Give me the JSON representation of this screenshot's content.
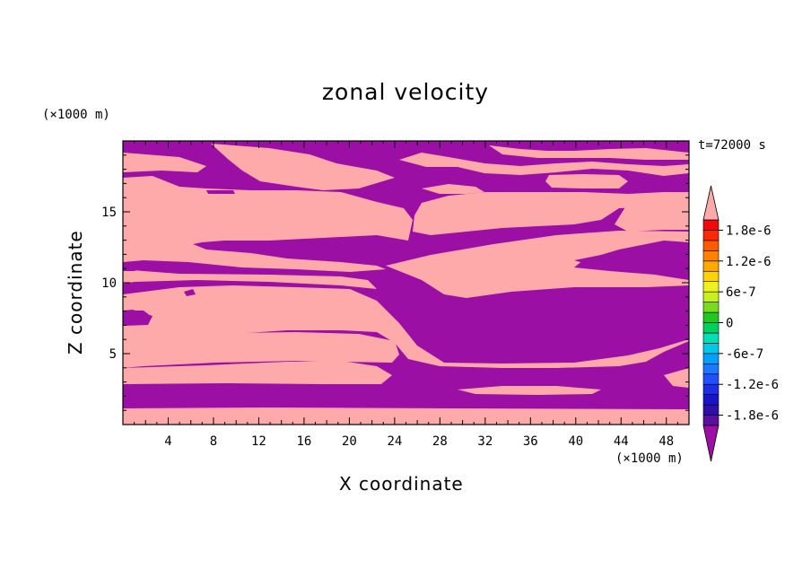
{
  "chart_data": {
    "type": "heatmap",
    "title": "zonal velocity",
    "time_label": "t=72000 s",
    "xlabel": "X coordinate",
    "ylabel": "Z coordinate",
    "x_unit": "(×1000 m)",
    "y_unit": "(×1000 m)",
    "xlim": [
      0,
      50
    ],
    "ylim": [
      0,
      20
    ],
    "x_ticks": [
      4,
      8,
      12,
      16,
      20,
      24,
      28,
      32,
      36,
      40,
      44,
      48
    ],
    "y_ticks": [
      5,
      10,
      15
    ],
    "colorbar": {
      "levels": [
        -2e-06,
        -1.8e-06,
        -1.6e-06,
        -1.4e-06,
        -1.2e-06,
        -1e-06,
        -8e-07,
        -6e-07,
        -4e-07,
        -2e-07,
        0,
        2e-07,
        4e-07,
        6e-07,
        8e-07,
        1e-06,
        1.2e-06,
        1.4e-06,
        1.6e-06,
        1.8e-06,
        2e-06
      ],
      "tick_labels": [
        "1.8e-6",
        "1.2e-6",
        "6e-7",
        "0",
        "-6e-7",
        "-1.2e-6",
        "-1.8e-6"
      ],
      "colors": [
        "#5a0fa0",
        "#2d0fa8",
        "#1a14c8",
        "#1e2ce8",
        "#2050ff",
        "#1e78ff",
        "#00a0ff",
        "#00c8e6",
        "#00e0b4",
        "#00d060",
        "#22c81e",
        "#78dc1e",
        "#c8f01e",
        "#f0f01e",
        "#ffd200",
        "#ffaa00",
        "#ff8200",
        "#ff5a00",
        "#ff2800",
        "#f00a0a"
      ],
      "under_color": "#9b0fa5",
      "over_color": "#ffaaaa"
    },
    "regions": {
      "background_value": "negative (below -2e-6)",
      "background_color": "#9b0fa5",
      "positive_color": "#ffaaaa"
    }
  }
}
